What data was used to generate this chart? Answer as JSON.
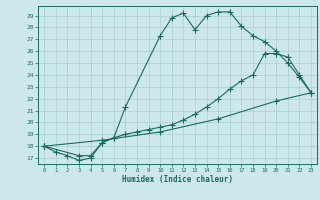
{
  "xlabel": "Humidex (Indice chaleur)",
  "background_color": "#cce8ea",
  "grid_color": "#aacfd2",
  "line_color": "#1a6b5e",
  "xlim": [
    -0.5,
    23.5
  ],
  "ylim": [
    16.5,
    29.8
  ],
  "yticks": [
    17,
    18,
    19,
    20,
    21,
    22,
    23,
    24,
    25,
    26,
    27,
    28,
    29
  ],
  "xticks": [
    0,
    1,
    2,
    3,
    4,
    5,
    6,
    7,
    8,
    9,
    10,
    11,
    12,
    13,
    14,
    15,
    16,
    17,
    18,
    19,
    20,
    21,
    22,
    23
  ],
  "line1_x": [
    0,
    1,
    2,
    3,
    4,
    5,
    6,
    7,
    10,
    11,
    12,
    13,
    14,
    15,
    16,
    17,
    18,
    19,
    20,
    21,
    22,
    23
  ],
  "line1_y": [
    18.0,
    17.5,
    17.2,
    16.8,
    17.0,
    18.3,
    18.7,
    21.3,
    27.3,
    28.8,
    29.2,
    27.8,
    29.0,
    29.3,
    29.3,
    28.1,
    27.3,
    26.8,
    26.0,
    25.0,
    23.8,
    22.5
  ],
  "line2_x": [
    0,
    3,
    4,
    5,
    6,
    7,
    8,
    9,
    10,
    11,
    12,
    13,
    14,
    15,
    16,
    17,
    18,
    19,
    20,
    21,
    22,
    23
  ],
  "line2_y": [
    18.0,
    17.2,
    17.2,
    18.3,
    18.7,
    19.0,
    19.2,
    19.4,
    19.6,
    19.8,
    20.2,
    20.7,
    21.3,
    22.0,
    22.8,
    23.5,
    24.0,
    25.8,
    25.8,
    25.5,
    24.0,
    22.5
  ],
  "line3_x": [
    0,
    5,
    10,
    15,
    20,
    23
  ],
  "line3_y": [
    18.0,
    18.5,
    19.2,
    20.3,
    21.8,
    22.5
  ]
}
